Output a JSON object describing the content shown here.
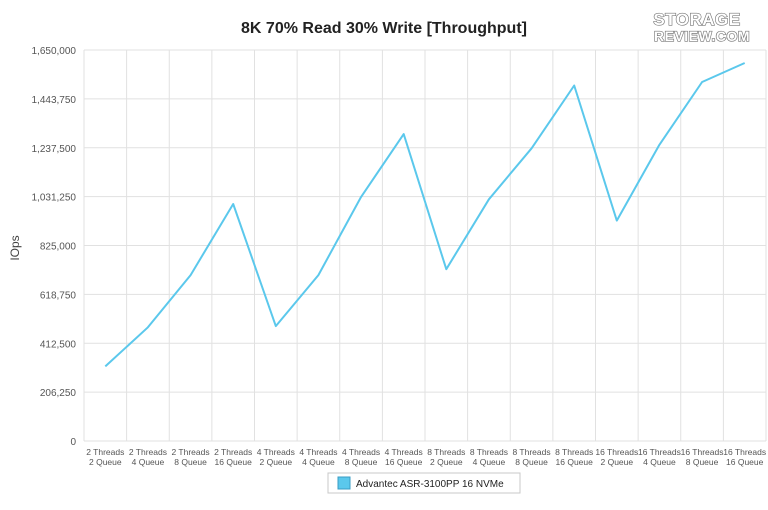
{
  "logo": {
    "line1": "STORAGE",
    "line2": "REVIEW.COM"
  },
  "chart_data": {
    "type": "line",
    "title": "8K 70% Read 30% Write [Throughput]",
    "xlabel": "",
    "ylabel": "IOps",
    "ylim": [
      0,
      1650000
    ],
    "yticks": [
      "0",
      "206,250",
      "412,500",
      "618,750",
      "825,000",
      "1,031,250",
      "1,237,500",
      "1,443,750",
      "1,650,000"
    ],
    "categories": [
      [
        "2 Threads",
        "2 Queue"
      ],
      [
        "2 Threads",
        "4 Queue"
      ],
      [
        "2 Threads",
        "8 Queue"
      ],
      [
        "2 Threads",
        "16 Queue"
      ],
      [
        "4 Threads",
        "2 Queue"
      ],
      [
        "4 Threads",
        "4 Queue"
      ],
      [
        "4 Threads",
        "8 Queue"
      ],
      [
        "4 Threads",
        "16 Queue"
      ],
      [
        "8 Threads",
        "2 Queue"
      ],
      [
        "8 Threads",
        "4 Queue"
      ],
      [
        "8 Threads",
        "8 Queue"
      ],
      [
        "8 Threads",
        "16 Queue"
      ],
      [
        "16 Threads",
        "2 Queue"
      ],
      [
        "16 Threads",
        "4 Queue"
      ],
      [
        "16 Threads",
        "8 Queue"
      ],
      [
        "16 Threads",
        "16 Queue"
      ]
    ],
    "series": [
      {
        "name": "Advantec ASR-3100PP 16 NVMe",
        "color": "#5bc8ec",
        "values": [
          315000,
          480000,
          700000,
          1000000,
          485000,
          700000,
          1030000,
          1295000,
          725000,
          1020000,
          1235000,
          1500000,
          930000,
          1250000,
          1515000,
          1595000
        ]
      }
    ],
    "grid": true,
    "legend_position": "bottom-center"
  }
}
